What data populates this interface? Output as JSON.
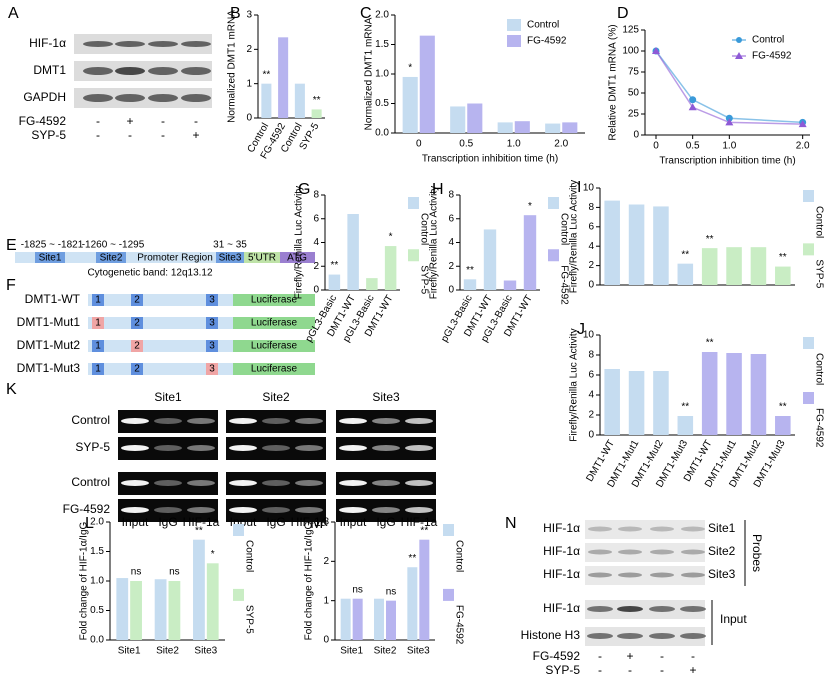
{
  "panel_labels": [
    "A",
    "B",
    "C",
    "D",
    "E",
    "F",
    "G",
    "H",
    "I",
    "J",
    "K",
    "L",
    "M",
    "N"
  ],
  "blot_A": {
    "rows": [
      "HIF-1α",
      "DMT1",
      "GAPDH"
    ],
    "treatments": [
      {
        "name": "FG-4592",
        "signs": [
          "-",
          "+",
          "-",
          "-"
        ]
      },
      {
        "name": "SYP-5",
        "signs": [
          "-",
          "-",
          "-",
          "+"
        ]
      }
    ]
  },
  "diagram_E": {
    "site1": "Site1",
    "site1_range": "-1825 ~ -1821",
    "site2": "Site2",
    "site2_range": "-1260 ~ -1295",
    "promoter": "Promoter Region",
    "site3": "Site3",
    "site3_range": "31 ~ 35",
    "utr": "5'UTR",
    "atg": "ATG",
    "band": "Cytogenetic band: 12q13.12"
  },
  "diagram_F": {
    "reporter": "Luciferase",
    "constructs": [
      {
        "name": "DMT1-WT",
        "sites": [
          {
            "label": "1",
            "mutated": false
          },
          {
            "label": "2",
            "mutated": false
          },
          {
            "label": "3",
            "mutated": false
          }
        ]
      },
      {
        "name": "DMT1-Mut1",
        "sites": [
          {
            "label": "1",
            "mutated": true
          },
          {
            "label": "2",
            "mutated": false
          },
          {
            "label": "3",
            "mutated": false
          }
        ]
      },
      {
        "name": "DMT1-Mut2",
        "sites": [
          {
            "label": "1",
            "mutated": false
          },
          {
            "label": "2",
            "mutated": true
          },
          {
            "label": "3",
            "mutated": false
          }
        ]
      },
      {
        "name": "DMT1-Mut3",
        "sites": [
          {
            "label": "1",
            "mutated": false
          },
          {
            "label": "2",
            "mutated": false
          },
          {
            "label": "3",
            "mutated": true
          }
        ]
      }
    ]
  },
  "blot_K": {
    "sites": [
      "Site1",
      "Site2",
      "Site3"
    ],
    "lanes": [
      "Input",
      "IgG",
      "HIF-1a"
    ],
    "rows": [
      "Control",
      "SYP-5",
      "Control",
      "FG-4592"
    ]
  },
  "blot_N": {
    "probe_rows": [
      {
        "protein": "HIF-1α",
        "site": "Site1"
      },
      {
        "protein": "HIF-1α",
        "site": "Site2"
      },
      {
        "protein": "HIF-1α",
        "site": "Site3"
      }
    ],
    "probes_label": "Probes",
    "input_rows": [
      "HIF-1α",
      "Histone H3"
    ],
    "input_label": "Input",
    "treatments": [
      {
        "name": "FG-4592",
        "signs": [
          "-",
          "+",
          "-",
          "-"
        ]
      },
      {
        "name": "SYP-5",
        "signs": [
          "-",
          "-",
          "-",
          "+"
        ]
      }
    ]
  },
  "chart_data": [
    {
      "type": "bar",
      "ylabel": "Normalized DMT1 mRNA",
      "categories": [
        "Control",
        "FG-4592",
        "Control",
        "SYP-5"
      ],
      "values": [
        1.0,
        2.35,
        1.0,
        0.25
      ],
      "colors": [
        "#c5dcf0",
        "#b7b4ef",
        "#c5dcf0",
        "#c9edc4"
      ],
      "significance": [
        "**",
        null,
        null,
        "**"
      ],
      "ylim": [
        0,
        3
      ],
      "yticks": [
        0,
        1,
        2,
        3
      ]
    },
    {
      "type": "bar",
      "ylabel": "Normalized DMT1 mRNA",
      "xlabel": "Transcription inhibition time (h)",
      "categories": [
        "0",
        "0.5",
        "1.0",
        "2.0"
      ],
      "legend": "top-right",
      "series": [
        {
          "name": "Control",
          "color": "#c5dcf0",
          "values": [
            0.95,
            0.45,
            0.18,
            0.16
          ],
          "significance": [
            "*",
            null,
            null,
            null
          ]
        },
        {
          "name": "FG-4592",
          "color": "#b7b4ef",
          "values": [
            1.65,
            0.5,
            0.2,
            0.18
          ]
        }
      ],
      "ylim": [
        0,
        2
      ],
      "yticks": [
        {
          "value": 0,
          "label": "0.0"
        },
        0.5,
        {
          "value": 1,
          "label": "1.0"
        },
        1.5,
        {
          "value": 2,
          "label": "2.0"
        }
      ]
    },
    {
      "type": "line",
      "ylabel": "Relative DMT1 mRNA (%)",
      "xlabel": "Transcription inhibition time (h)",
      "x": [
        0,
        0.5,
        1,
        2
      ],
      "legend": "top-right",
      "series": [
        {
          "name": "Control",
          "color": "#3a9ad9",
          "marker": "circle",
          "values": [
            100,
            42,
            20,
            15
          ]
        },
        {
          "name": "FG-4592",
          "color": "#8e5ad6",
          "marker": "triangle",
          "values": [
            100,
            33,
            15,
            13
          ]
        }
      ],
      "xlim": [
        -0.15,
        2.1
      ],
      "xticks": [
        0,
        0.5,
        {
          "value": 1,
          "label": "1.0"
        },
        {
          "value": 2,
          "label": "2.0"
        }
      ],
      "ylim": [
        0,
        125
      ],
      "yticks": [
        0,
        25,
        50,
        75,
        100,
        125
      ]
    },
    {
      "type": "bar",
      "ylabel": "Firefly/Renilla Luc Activity",
      "categories": [
        "pGL3-Basic",
        "DMT1-WT",
        "pGL3-Basic",
        "DMT1-WT"
      ],
      "legend": "right",
      "series": [
        {
          "name": "Control",
          "color": "#c5dcf0",
          "values": [
            1.3,
            6.4,
            null,
            null
          ],
          "significance": [
            "**",
            null,
            null,
            null
          ]
        },
        {
          "name": "SYP-5",
          "color": "#c9edc4",
          "values": [
            null,
            null,
            1.0,
            3.7
          ],
          "significance": [
            null,
            null,
            null,
            "*"
          ]
        }
      ],
      "ylim": [
        0,
        8
      ],
      "yticks": [
        0,
        2,
        4,
        6,
        8
      ]
    },
    {
      "type": "bar",
      "ylabel": "Firefly/Renilla Luc Activity",
      "categories": [
        "pGL3-Basic",
        "DMT1-WT",
        "pGL3-Basic",
        "DMT1-WT"
      ],
      "legend": "right",
      "series": [
        {
          "name": "Control",
          "color": "#c5dcf0",
          "values": [
            0.9,
            5.1,
            null,
            null
          ],
          "significance": [
            "**",
            null,
            null,
            null
          ]
        },
        {
          "name": "FG-4592",
          "color": "#b7b4ef",
          "values": [
            null,
            null,
            0.8,
            6.3
          ],
          "significance": [
            null,
            null,
            null,
            "*"
          ]
        }
      ],
      "ylim": [
        0,
        8
      ],
      "yticks": [
        0,
        2,
        4,
        6,
        8
      ]
    },
    {
      "type": "bar",
      "ylabel": "Firefly/Renilla Luc Activity",
      "categories": [
        null,
        null,
        null,
        null,
        null,
        null,
        null,
        null
      ],
      "legend": "right",
      "series": [
        {
          "name": "Control",
          "color": "#c5dcf0",
          "values": [
            8.7,
            8.3,
            8.1,
            2.2,
            null,
            null,
            null,
            null
          ],
          "significance": [
            null,
            null,
            null,
            "**",
            null,
            null,
            null,
            null
          ]
        },
        {
          "name": "SYP-5",
          "color": "#c9edc4",
          "values": [
            null,
            null,
            null,
            null,
            3.8,
            3.9,
            3.9,
            1.9
          ],
          "significance": [
            null,
            null,
            null,
            null,
            "**",
            null,
            null,
            "**"
          ]
        }
      ],
      "ylim": [
        0,
        10
      ],
      "yticks": [
        0,
        2,
        4,
        6,
        8,
        10
      ]
    },
    {
      "type": "bar",
      "ylabel": "Firefly/Renilla Luc Activity",
      "categories": [
        "DMT1-WT",
        "DMT1-Mut1",
        "DMT1-Mut2",
        "DMT1-Mut3",
        "DMT1-WT",
        "DMT1-Mut1",
        "DMT1-Mut2",
        "DMT1-Mut3"
      ],
      "legend": "right",
      "series": [
        {
          "name": "Control",
          "color": "#c5dcf0",
          "values": [
            6.6,
            6.4,
            6.4,
            1.9,
            null,
            null,
            null,
            null
          ],
          "significance": [
            null,
            null,
            null,
            "**",
            null,
            null,
            null,
            null
          ]
        },
        {
          "name": "FG-4592",
          "color": "#b7b4ef",
          "values": [
            null,
            null,
            null,
            null,
            8.3,
            8.2,
            8.1,
            1.9
          ],
          "significance": [
            null,
            null,
            null,
            null,
            "**",
            null,
            null,
            "**"
          ]
        }
      ],
      "ylim": [
        0,
        10
      ],
      "yticks": [
        0,
        2,
        4,
        6,
        8,
        10
      ]
    },
    {
      "type": "bar",
      "ylabel": "Fold change of HIF-1α/IgG",
      "categories": [
        "Site1",
        "Site2",
        "Site3"
      ],
      "legend": "right",
      "series": [
        {
          "name": "Control",
          "color": "#c5dcf0",
          "values": [
            1.05,
            1.03,
            1.7
          ],
          "significance": [
            null,
            null,
            "**"
          ]
        },
        {
          "name": "SYP-5",
          "color": "#c9edc4",
          "values": [
            1.0,
            1.0,
            1.3
          ],
          "significance": [
            "ns",
            "ns",
            "*"
          ]
        }
      ],
      "ylim": [
        0,
        2
      ],
      "yticks": [
        {
          "value": 0,
          "label": "0.0"
        },
        0.5,
        {
          "value": 1,
          "label": "1.0"
        },
        1.5,
        {
          "value": 2,
          "label": "2.0"
        }
      ]
    },
    {
      "type": "bar",
      "ylabel": "Fold change of HIF-1α/IgG",
      "categories": [
        "Site1",
        "Site2",
        "Site3"
      ],
      "legend": "right",
      "series": [
        {
          "name": "Control",
          "color": "#c5dcf0",
          "values": [
            1.05,
            1.05,
            1.85
          ],
          "significance": [
            null,
            null,
            "**"
          ]
        },
        {
          "name": "FG-4592",
          "color": "#b7b4ef",
          "values": [
            1.05,
            1.0,
            2.55
          ],
          "significance": [
            "ns",
            "ns",
            "**"
          ]
        }
      ],
      "ylim": [
        0,
        3
      ],
      "yticks": [
        0,
        1,
        2,
        3
      ]
    }
  ]
}
